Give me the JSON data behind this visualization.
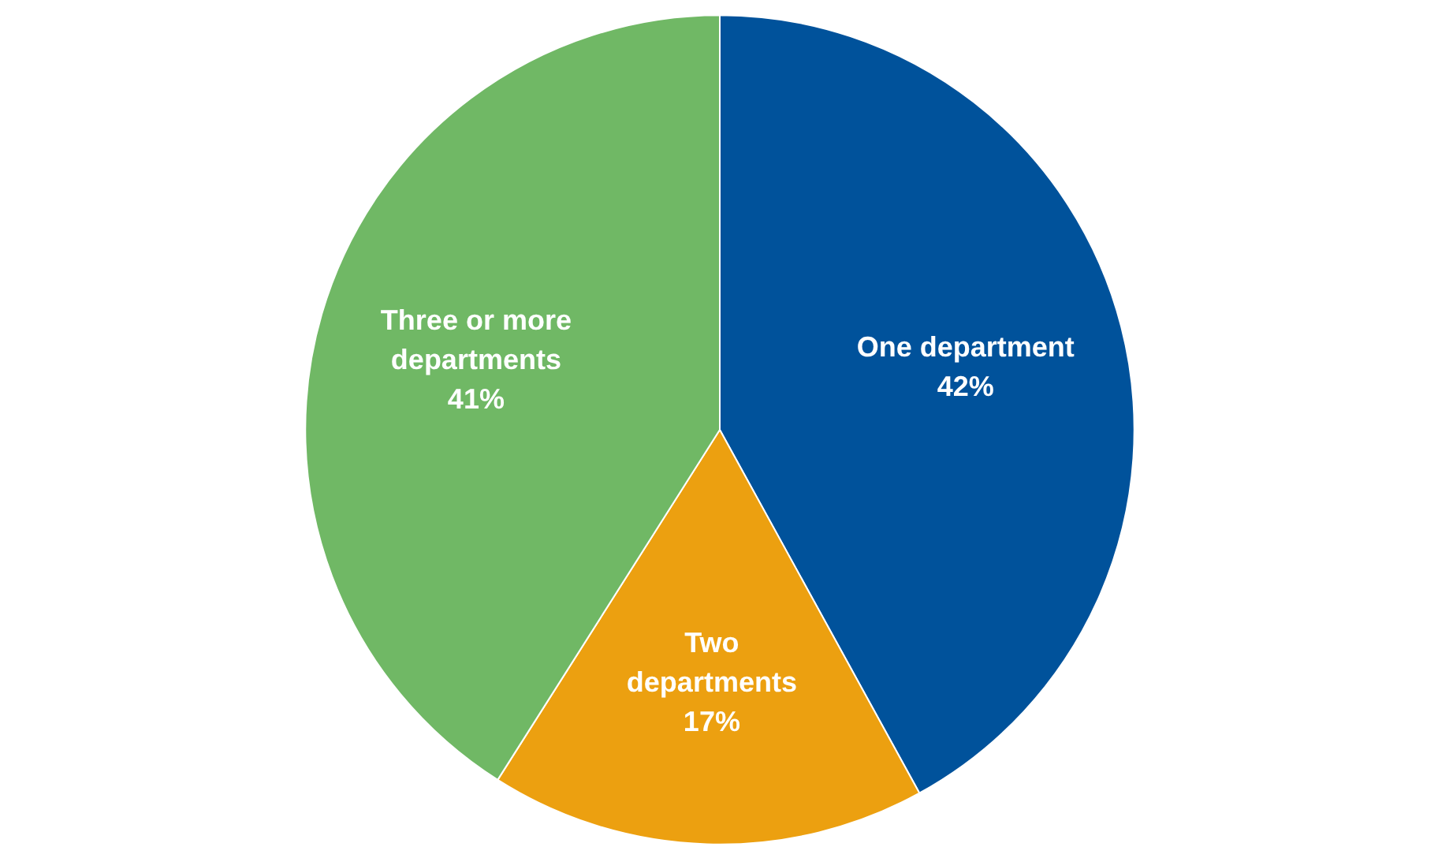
{
  "chart_data": {
    "type": "pie",
    "categories": [
      "One department",
      "Two departments",
      "Three or more departments"
    ],
    "values": [
      42,
      17,
      41
    ],
    "colors": [
      "#00529b",
      "#eca010",
      "#70b865"
    ],
    "value_labels": [
      "42%",
      "17%",
      "41%"
    ]
  }
}
